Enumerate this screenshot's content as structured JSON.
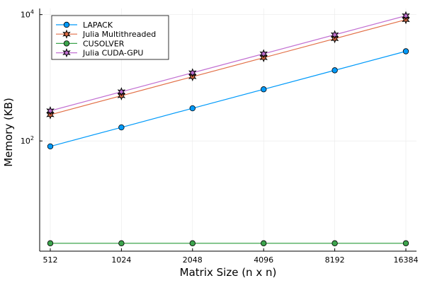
{
  "chart_data": {
    "type": "line",
    "xlabel": "Matrix Size (n x n)",
    "ylabel": "Memory (KB)",
    "x_scale": "log2",
    "y_scale": "log10",
    "x": [
      512,
      1024,
      2048,
      4096,
      8192,
      16384
    ],
    "x_tick_labels": [
      "512",
      "1024",
      "2048",
      "4096",
      "8192",
      "16384"
    ],
    "y_ticks": [
      {
        "value": 100,
        "base": "10",
        "exp": "2"
      },
      {
        "value": 10000,
        "base": "10",
        "exp": "4"
      }
    ],
    "ylim": [
      1.8,
      12500
    ],
    "grid": true,
    "legend_position": "top-left",
    "series": [
      {
        "name": "LAPACK",
        "color": "#009AFA",
        "marker": "circle",
        "values": [
          82,
          164,
          329,
          657,
          1313,
          2626
        ]
      },
      {
        "name": "Julia Multithreaded",
        "color": "#E26F46",
        "marker": "star",
        "values": [
          260,
          520,
          1040,
          2080,
          4160,
          8320
        ]
      },
      {
        "name": "CUSOLVER",
        "color": "#3DA44D",
        "marker": "circle",
        "values": [
          2.4,
          2.4,
          2.4,
          2.4,
          2.4,
          2.4
        ]
      },
      {
        "name": "Julia CUDA-GPU",
        "color": "#C271D2",
        "marker": "star",
        "values": [
          300,
          600,
          1200,
          2400,
          4800,
          9600
        ]
      }
    ]
  }
}
